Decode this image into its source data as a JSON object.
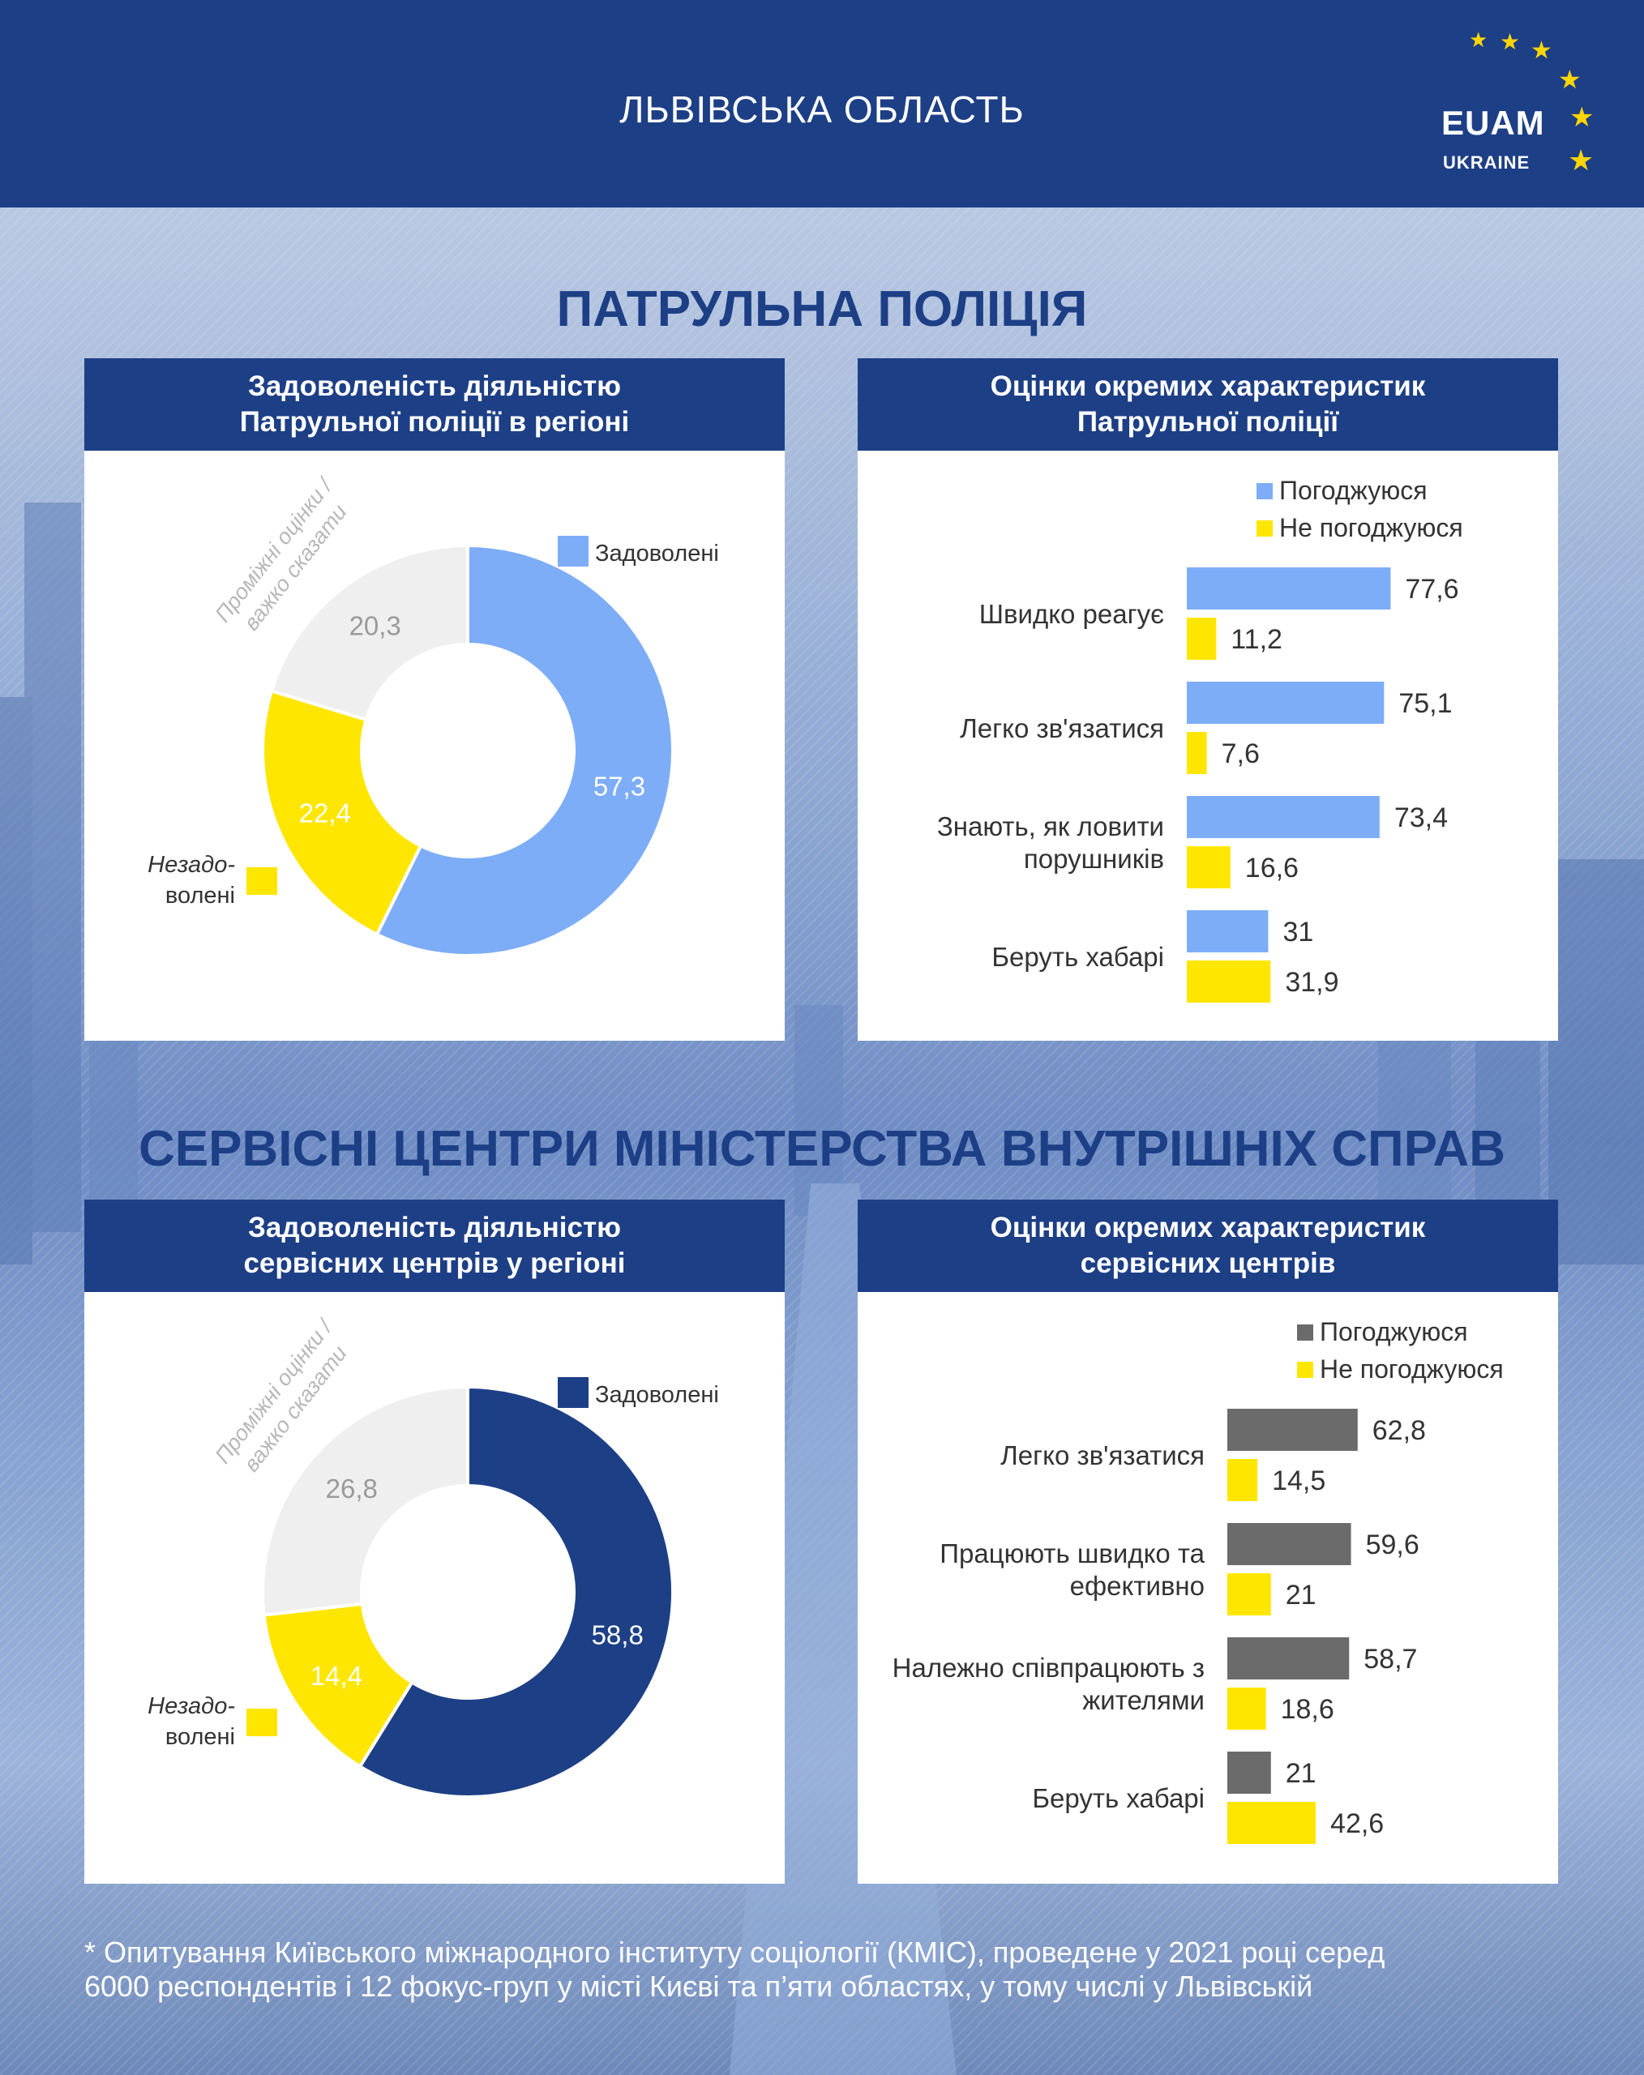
{
  "header": {
    "title": "ЛЬВІВСЬКА ОБЛАСТЬ",
    "logo_text": "EUAM",
    "logo_sub": "UKRAINE"
  },
  "section1": {
    "title": "ПАТРУЛЬНА ПОЛІЦІЯ",
    "left_panel": {
      "title_line1": "Задоволеність діяльністю",
      "title_line2": "Патрульної поліції в регіоні"
    },
    "right_panel": {
      "title_line1": "Оцінки окремих характеристик",
      "title_line2": "Патрульної поліції"
    }
  },
  "section2": {
    "title": "СЕРВІСНІ ЦЕНТРИ МІНІСТЕРСТВА ВНУТРІШНІХ СПРАВ",
    "left_panel": {
      "title_line1": "Задоволеність діяльністю",
      "title_line2": "сервісних центрів у регіоні"
    },
    "right_panel": {
      "title_line1": "Оцінки окремих характеристик",
      "title_line2": "сервісних центрів"
    }
  },
  "footnote": {
    "line1": "* Опитування Київського міжнародного інституту соціології (КМІС), проведене у 2021 році серед",
    "line2": "6000 респондентів і 12 фокус-груп у місті Києві та п’яти областях, у тому числі у Львівській"
  },
  "colors": {
    "navy": "#1d3f86",
    "light_blue": "#7dadf7",
    "yellow": "#ffe600",
    "light_gray": "#efefef",
    "dark_gray": "#6b6b6b"
  },
  "chart_data": [
    {
      "type": "pie",
      "slices": [
        {
          "label": "Задоволені",
          "value": 57.3,
          "color": "#7dadf7"
        },
        {
          "label": "Незадо-\nволені",
          "value": 22.4,
          "color": "#ffe600"
        },
        {
          "label": "Проміжні оцінки /\nважко сказати",
          "value": 20.3,
          "color": "#efefef"
        }
      ]
    },
    {
      "type": "bar",
      "categories": [
        "Швидко реагує",
        "Легко зв'язатися",
        "Знають, як ловити порушників",
        "Беруть хабарі"
      ],
      "series": [
        {
          "name": "Погоджуюся",
          "values": [
            77.6,
            75.1,
            73.4,
            31
          ],
          "color": "#7dadf7"
        },
        {
          "name": "Не погоджуюся",
          "values": [
            11.2,
            7.6,
            16.6,
            31.9
          ],
          "color": "#ffe600"
        }
      ]
    },
    {
      "type": "pie",
      "slices": [
        {
          "label": "Задоволені",
          "value": 58.8,
          "color": "#1d3f86"
        },
        {
          "label": "Незадо-\nволені",
          "value": 14.4,
          "color": "#ffe600"
        },
        {
          "label": "Проміжні оцінки /\nважко сказати",
          "value": 26.8,
          "color": "#efefef"
        }
      ]
    },
    {
      "type": "bar",
      "categories": [
        "Легко зв'язатися",
        "Працюють швидко та ефективно",
        "Належно співпрацюють з жителями",
        "Беруть хабарі"
      ],
      "series": [
        {
          "name": "Погоджуюся",
          "values": [
            62.8,
            59.6,
            58.7,
            21
          ],
          "color": "#6b6b6b"
        },
        {
          "name": "Не погоджуюся",
          "values": [
            14.5,
            21,
            18.6,
            42.6
          ],
          "color": "#ffe600"
        }
      ]
    }
  ]
}
